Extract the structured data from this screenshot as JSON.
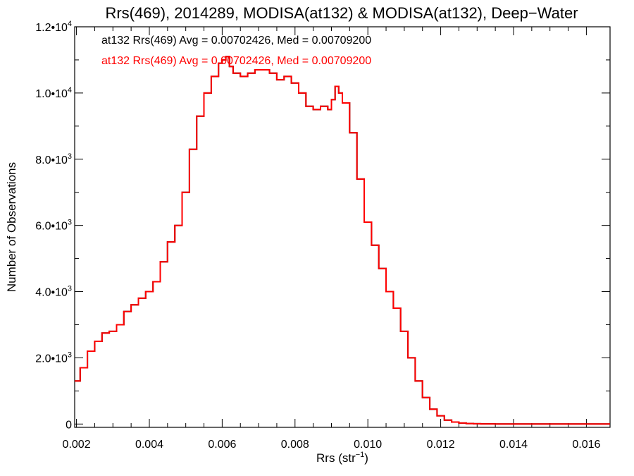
{
  "chart_data": {
    "type": "step",
    "title": "Rrs(469), 2014289, MODISA(at132) & MODISA(at132), Deep−Water",
    "xlabel": {
      "base": "Rrs (str",
      "sup": "−1",
      "close": ")"
    },
    "ylabel": "Number of Observations",
    "xlim": [
      0.00195,
      0.01665
    ],
    "ylim": [
      -100,
      12000
    ],
    "x_ticks": [
      0.002,
      0.004,
      0.006,
      0.008,
      0.01,
      0.012,
      0.014,
      0.016
    ],
    "x_tick_labels": [
      "0.002",
      "0.004",
      "0.006",
      "0.008",
      "0.010",
      "0.012",
      "0.014",
      "0.016"
    ],
    "y_ticks": [
      0,
      2000,
      4000,
      6000,
      8000,
      10000,
      12000
    ],
    "y_tick_labels": [
      {
        "base": "0",
        "sup": ""
      },
      {
        "base": "2.0•10",
        "sup": "3"
      },
      {
        "base": "4.0•10",
        "sup": "3"
      },
      {
        "base": "6.0•10",
        "sup": "3"
      },
      {
        "base": "8.0•10",
        "sup": "3"
      },
      {
        "base": "1.0•10",
        "sup": "4"
      },
      {
        "base": "1.2•10",
        "sup": "4"
      }
    ],
    "annotations": [
      {
        "text": "at132 Rrs(469) Avg = 0.00702426, Med = 0.00709200",
        "color": "#000000"
      },
      {
        "text": "at132 Rrs(469) Avg = 0.00702426, Med = 0.00709200",
        "color": "#ff0000"
      }
    ],
    "series": [
      {
        "color": "#000000",
        "x": [
          0.00195,
          0.0021,
          0.0023,
          0.0025,
          0.0027,
          0.0029,
          0.0031,
          0.0033,
          0.0035,
          0.0037,
          0.0039,
          0.0041,
          0.0043,
          0.0045,
          0.0047,
          0.0049,
          0.0051,
          0.0053,
          0.0055,
          0.0057,
          0.0059,
          0.006,
          0.0061,
          0.0062,
          0.0063,
          0.0065,
          0.0067,
          0.0069,
          0.0071,
          0.0073,
          0.0075,
          0.0077,
          0.0079,
          0.0081,
          0.0083,
          0.0085,
          0.0087,
          0.0089,
          0.009,
          0.0091,
          0.0092,
          0.0093,
          0.0095,
          0.0097,
          0.0099,
          0.0101,
          0.0103,
          0.0105,
          0.0107,
          0.0109,
          0.0111,
          0.0113,
          0.0115,
          0.0117,
          0.0119,
          0.0121,
          0.0123,
          0.0125,
          0.0127,
          0.0129,
          0.0131,
          0.0135,
          0.014,
          0.015,
          0.016,
          0.01665
        ],
        "y": [
          1300,
          1700,
          2200,
          2500,
          2750,
          2800,
          3000,
          3400,
          3600,
          3800,
          4000,
          4300,
          4900,
          5500,
          6000,
          7000,
          8300,
          9300,
          10000,
          10500,
          10900,
          11000,
          11100,
          10800,
          10600,
          10500,
          10600,
          10700,
          10700,
          10600,
          10400,
          10500,
          10300,
          10000,
          9600,
          9500,
          9600,
          9500,
          9800,
          10200,
          10000,
          9700,
          8800,
          7400,
          6100,
          5400,
          4700,
          4000,
          3500,
          2800,
          2000,
          1300,
          800,
          450,
          250,
          120,
          60,
          30,
          15,
          8,
          5,
          3,
          2,
          1,
          1,
          1
        ]
      },
      {
        "color": "#ff0000",
        "x": [
          0.00195,
          0.0021,
          0.0023,
          0.0025,
          0.0027,
          0.0029,
          0.0031,
          0.0033,
          0.0035,
          0.0037,
          0.0039,
          0.0041,
          0.0043,
          0.0045,
          0.0047,
          0.0049,
          0.0051,
          0.0053,
          0.0055,
          0.0057,
          0.0059,
          0.006,
          0.0061,
          0.0062,
          0.0063,
          0.0065,
          0.0067,
          0.0069,
          0.0071,
          0.0073,
          0.0075,
          0.0077,
          0.0079,
          0.0081,
          0.0083,
          0.0085,
          0.0087,
          0.0089,
          0.009,
          0.0091,
          0.0092,
          0.0093,
          0.0095,
          0.0097,
          0.0099,
          0.0101,
          0.0103,
          0.0105,
          0.0107,
          0.0109,
          0.0111,
          0.0113,
          0.0115,
          0.0117,
          0.0119,
          0.0121,
          0.0123,
          0.0125,
          0.0127,
          0.0129,
          0.0131,
          0.0135,
          0.014,
          0.015,
          0.016,
          0.01665
        ],
        "y": [
          1300,
          1700,
          2200,
          2500,
          2750,
          2800,
          3000,
          3400,
          3600,
          3800,
          4000,
          4300,
          4900,
          5500,
          6000,
          7000,
          8300,
          9300,
          10000,
          10500,
          10900,
          11000,
          11100,
          10800,
          10600,
          10500,
          10600,
          10700,
          10700,
          10600,
          10400,
          10500,
          10300,
          10000,
          9600,
          9500,
          9600,
          9500,
          9800,
          10200,
          10000,
          9700,
          8800,
          7400,
          6100,
          5400,
          4700,
          4000,
          3500,
          2800,
          2000,
          1300,
          800,
          450,
          250,
          120,
          60,
          30,
          15,
          8,
          5,
          3,
          2,
          1,
          1,
          1
        ]
      }
    ]
  }
}
